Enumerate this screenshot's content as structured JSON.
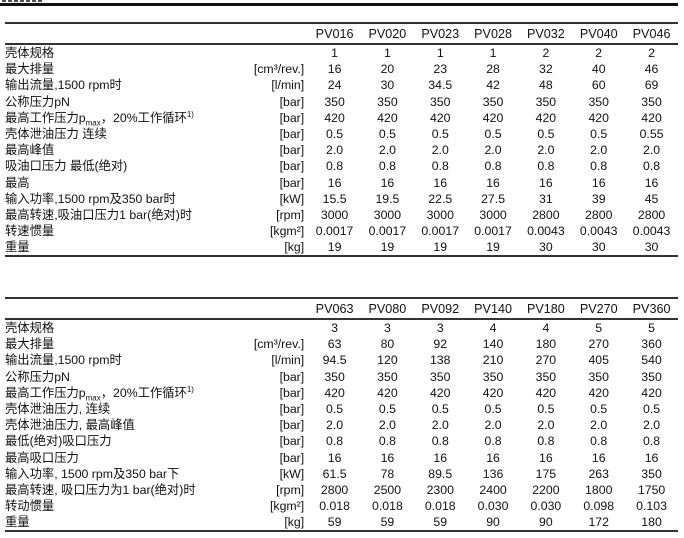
{
  "tables": [
    {
      "models": [
        "PV016",
        "PV020",
        "PV023",
        "PV028",
        "PV032",
        "PV040",
        "PV046"
      ],
      "rows": [
        {
          "label": [
            "壳体规格"
          ],
          "unit": "",
          "values": [
            "1",
            "1",
            "1",
            "1",
            "2",
            "2",
            "2"
          ]
        },
        {
          "label": [
            "最大排量"
          ],
          "unit": "[cm³/rev.]",
          "values": [
            "16",
            "20",
            "23",
            "28",
            "32",
            "40",
            "46"
          ]
        },
        {
          "label": [
            "输出流量,1500 rpm时"
          ],
          "unit": "[l/min]",
          "values": [
            "24",
            "30",
            "34.5",
            "42",
            "48",
            "60",
            "69"
          ]
        },
        {
          "label": [
            "公称压力pN"
          ],
          "unit": "[bar]",
          "values": [
            "350",
            "350",
            "350",
            "350",
            "350",
            "350",
            "350"
          ]
        },
        {
          "label": [
            "最高工作压力p",
            "max",
            "，20%工作循环",
            "1)"
          ],
          "unit": "[bar]",
          "values": [
            "420",
            "420",
            "420",
            "420",
            "420",
            "420",
            "420"
          ]
        },
        {
          "label": [
            "壳体泄油压力  连续"
          ],
          "unit": "[bar]",
          "values": [
            "0.5",
            "0.5",
            "0.5",
            "0.5",
            "0.5",
            "0.5",
            "0.55"
          ]
        },
        {
          "label": [
            "最高峰值"
          ],
          "unit": "[bar]",
          "values": [
            "2.0",
            "2.0",
            "2.0",
            "2.0",
            "2.0",
            "2.0",
            "2.0"
          ]
        },
        {
          "label": [
            "吸油口压力 最低(绝对)"
          ],
          "unit": "[bar]",
          "values": [
            "0.8",
            "0.8",
            "0.8",
            "0.8",
            "0.8",
            "0.8",
            "0.8"
          ]
        },
        {
          "label": [
            "最高"
          ],
          "unit": "[bar]",
          "values": [
            "16",
            "16",
            "16",
            "16",
            "16",
            "16",
            "16"
          ]
        },
        {
          "label": [
            "输入功率,1500 rpm及350 bar时"
          ],
          "unit": "[kW]",
          "values": [
            "15.5",
            "19.5",
            "22.5",
            "27.5",
            "31",
            "39",
            "45"
          ]
        },
        {
          "label": [
            "最高转速,吸油口压力1 bar(绝对)时"
          ],
          "unit": "[rpm]",
          "values": [
            "3000",
            "3000",
            "3000",
            "3000",
            "2800",
            "2800",
            "2800"
          ]
        },
        {
          "label": [
            "转速惯量"
          ],
          "unit": "[kgm²]",
          "values": [
            "0.0017",
            "0.0017",
            "0.0017",
            "0.0017",
            "0.0043",
            "0.0043",
            "0.0043"
          ]
        },
        {
          "label": [
            "重量"
          ],
          "unit": "[kg]",
          "values": [
            "19",
            "19",
            "19",
            "19",
            "30",
            "30",
            "30"
          ]
        }
      ]
    },
    {
      "models": [
        "PV063",
        "PV080",
        "PV092",
        "PV140",
        "PV180",
        "PV270",
        "PV360"
      ],
      "rows": [
        {
          "label": [
            "壳体规格"
          ],
          "unit": "",
          "values": [
            "3",
            "3",
            "3",
            "4",
            "4",
            "5",
            "5"
          ]
        },
        {
          "label": [
            "最大排量"
          ],
          "unit": "[cm³/rev.]",
          "values": [
            "63",
            "80",
            "92",
            "140",
            "180",
            "270",
            "360"
          ]
        },
        {
          "label": [
            "输出流量,1500 rpm时"
          ],
          "unit": "[l/min]",
          "values": [
            "94.5",
            "120",
            "138",
            "210",
            "270",
            "405",
            "540"
          ]
        },
        {
          "label": [
            "公称压力pN"
          ],
          "unit": "[bar]",
          "values": [
            "350",
            "350",
            "350",
            "350",
            "350",
            "350",
            "350"
          ]
        },
        {
          "label": [
            "最高工作压力p",
            "max",
            "，20%工作循环",
            "1)"
          ],
          "unit": "[bar]",
          "values": [
            "420",
            "420",
            "420",
            "420",
            "420",
            "420",
            "420"
          ]
        },
        {
          "label": [
            "壳体泄油压力, 连续"
          ],
          "unit": "[bar]",
          "values": [
            "0.5",
            "0.5",
            "0.5",
            "0.5",
            "0.5",
            "0.5",
            "0.5"
          ]
        },
        {
          "label": [
            "壳体泄油压力, 最高峰值"
          ],
          "unit": "[bar]",
          "values": [
            "2.0",
            "2.0",
            "2.0",
            "2.0",
            "2.0",
            "2.0",
            "2.0"
          ]
        },
        {
          "label": [
            "最低(绝对)吸口压力"
          ],
          "unit": "[bar]",
          "values": [
            "0.8",
            "0.8",
            "0.8",
            "0.8",
            "0.8",
            "0.8",
            "0.8"
          ]
        },
        {
          "label": [
            "最高吸口压力"
          ],
          "unit": "[bar]",
          "values": [
            "16",
            "16",
            "16",
            "16",
            "16",
            "16",
            "16"
          ]
        },
        {
          "label": [
            "输入功率, 1500 rpm及350 bar下"
          ],
          "unit": "[kW]",
          "values": [
            "61.5",
            "78",
            "89.5",
            "136",
            "175",
            "263",
            "350"
          ]
        },
        {
          "label": [
            "最高转速, 吸口压力为1 bar(绝对)时"
          ],
          "unit": "[rpm]",
          "values": [
            "2800",
            "2500",
            "2300",
            "2400",
            "2200",
            "1800",
            "1750"
          ]
        },
        {
          "label": [
            "转动惯量"
          ],
          "unit": "[kgm²]",
          "values": [
            "0.018",
            "0.018",
            "0.018",
            "0.030",
            "0.030",
            "0.098",
            "0.103"
          ]
        },
        {
          "label": [
            "重量"
          ],
          "unit": "[kg]",
          "values": [
            "59",
            "59",
            "59",
            "90",
            "90",
            "172",
            "180"
          ]
        }
      ]
    }
  ]
}
